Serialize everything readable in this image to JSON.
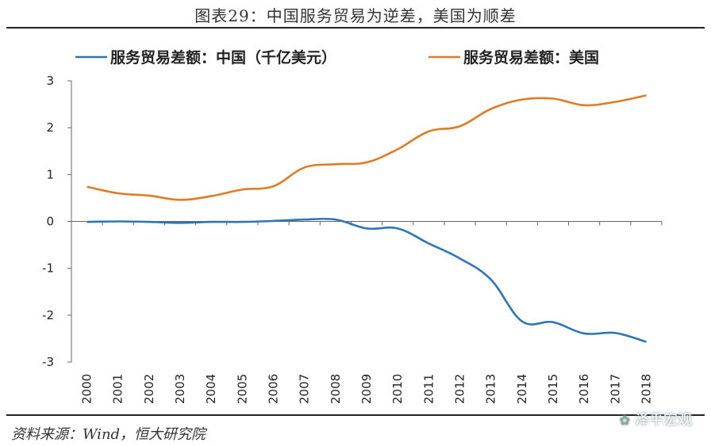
{
  "title": "图表29：中国服务贸易为逆差，美国为顺差",
  "source": "资料来源：Wind，恒大研究院",
  "watermark": "泽平宏观",
  "colors": {
    "china": "#2e75b6",
    "usa": "#e07b26"
  },
  "chart_data": {
    "type": "line",
    "title": "",
    "xlabel": "",
    "ylabel": "",
    "ylim": [
      -3,
      3
    ],
    "yticks": [
      -3,
      -2,
      -1,
      0,
      1,
      2,
      3
    ],
    "legend_position": "top",
    "grid": false,
    "x": [
      "2000",
      "2001",
      "2002",
      "2003",
      "2004",
      "2005",
      "2006",
      "2007",
      "2008",
      "2009",
      "2010",
      "2011",
      "2012",
      "2013",
      "2014",
      "2015",
      "2016",
      "2017",
      "2018"
    ],
    "series": [
      {
        "name": "服务贸易差额：中国（千亿美元）",
        "color": "#2e75b6",
        "values": [
          -0.01,
          0.0,
          -0.01,
          -0.03,
          -0.01,
          -0.01,
          0.01,
          0.04,
          0.04,
          -0.15,
          -0.15,
          -0.47,
          -0.79,
          -1.24,
          -2.13,
          -2.15,
          -2.39,
          -2.38,
          -2.57
        ]
      },
      {
        "name": "服务贸易差额：美国",
        "color": "#e07b26",
        "values": [
          0.74,
          0.6,
          0.55,
          0.46,
          0.54,
          0.68,
          0.75,
          1.15,
          1.22,
          1.26,
          1.54,
          1.92,
          2.03,
          2.4,
          2.6,
          2.62,
          2.48,
          2.55,
          2.69
        ]
      }
    ]
  }
}
